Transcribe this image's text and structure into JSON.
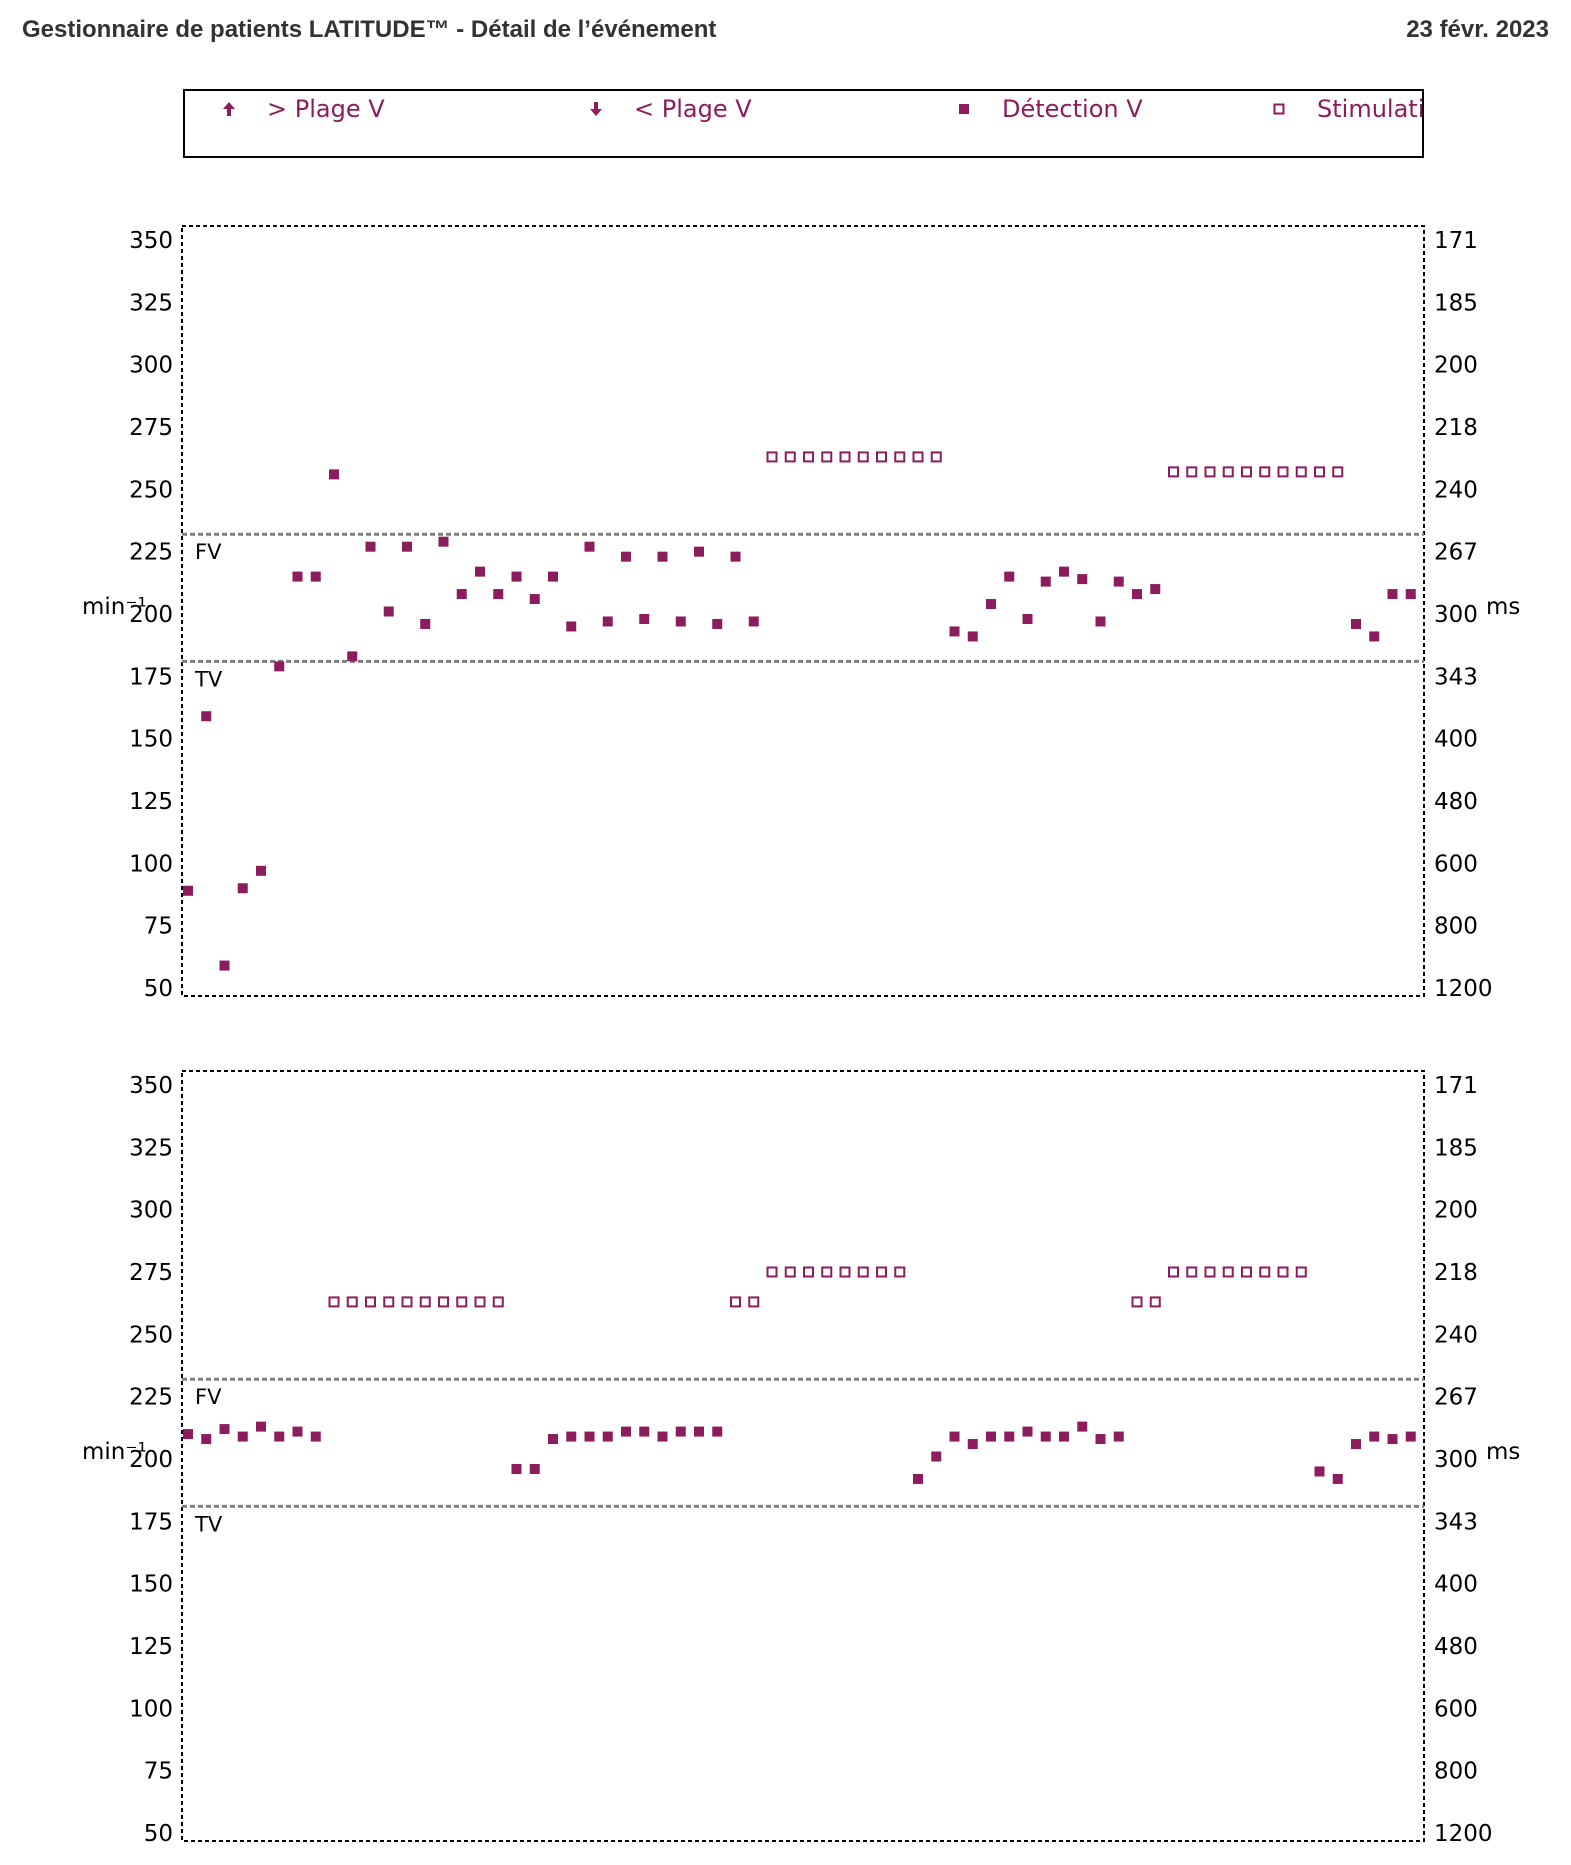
{
  "header": {
    "title": "Gestionnaire de patients LATITUDE™ - Détail de l’événement",
    "date": "23 févr. 2023"
  },
  "colors": {
    "marker": "#8B1D5E",
    "zone_line": "#808080",
    "frame": "#000000"
  },
  "legend": {
    "items": [
      {
        "label": "> Plage V",
        "icon": "arrow-up-icon"
      },
      {
        "label": "< Plage V",
        "icon": "arrow-down-icon"
      },
      {
        "label": "Détection V",
        "icon": "filled-square-icon"
      },
      {
        "label": "Stimulation V",
        "icon": "open-square-icon"
      }
    ]
  },
  "chart_data": [
    {
      "type": "scatter",
      "ylabel": "min⁻¹",
      "ylabel_right": "ms",
      "yticks": [
        350,
        325,
        300,
        275,
        250,
        225,
        200,
        175,
        150,
        125,
        100,
        75,
        50
      ],
      "yticks_right": [
        "171",
        "185",
        "200",
        "218",
        "240",
        "267",
        "300",
        "343",
        "400",
        "480",
        "600",
        "800",
        "1200"
      ],
      "ylim": [
        50,
        350
      ],
      "grid": false,
      "zones": [
        {
          "label": "FV",
          "value": 232
        },
        {
          "label": "TV",
          "value": 181
        }
      ],
      "series": [
        {
          "name": "Détection V",
          "marker": "filled-square",
          "points": [
            [
              0,
              89
            ],
            [
              1,
              159
            ],
            [
              2,
              59
            ],
            [
              3,
              90
            ],
            [
              4,
              97
            ],
            [
              5,
              179
            ],
            [
              6,
              215
            ],
            [
              7,
              215
            ],
            [
              8,
              256
            ],
            [
              9,
              183
            ],
            [
              10,
              227
            ],
            [
              11,
              201
            ],
            [
              12,
              227
            ],
            [
              13,
              196
            ],
            [
              14,
              229
            ],
            [
              15,
              208
            ],
            [
              16,
              217
            ],
            [
              17,
              208
            ],
            [
              18,
              215
            ],
            [
              19,
              206
            ],
            [
              20,
              215
            ],
            [
              21,
              195
            ],
            [
              22,
              227
            ],
            [
              23,
              197
            ],
            [
              24,
              223
            ],
            [
              25,
              198
            ],
            [
              26,
              223
            ],
            [
              27,
              197
            ],
            [
              28,
              225
            ],
            [
              29,
              196
            ],
            [
              30,
              223
            ],
            [
              31,
              197
            ],
            [
              42,
              193
            ],
            [
              43,
              191
            ],
            [
              44,
              204
            ],
            [
              45,
              215
            ],
            [
              46,
              198
            ],
            [
              47,
              213
            ],
            [
              48,
              217
            ],
            [
              49,
              214
            ],
            [
              50,
              197
            ],
            [
              51,
              213
            ],
            [
              52,
              208
            ],
            [
              53,
              210
            ],
            [
              64,
              196
            ],
            [
              65,
              191
            ],
            [
              66,
              208
            ],
            [
              67,
              208
            ]
          ]
        },
        {
          "name": "Stimulation V",
          "marker": "open-square",
          "points": [
            [
              32,
              263
            ],
            [
              33,
              263
            ],
            [
              34,
              263
            ],
            [
              35,
              263
            ],
            [
              36,
              263
            ],
            [
              37,
              263
            ],
            [
              38,
              263
            ],
            [
              39,
              263
            ],
            [
              40,
              263
            ],
            [
              41,
              263
            ],
            [
              54,
              257
            ],
            [
              55,
              257
            ],
            [
              56,
              257
            ],
            [
              57,
              257
            ],
            [
              58,
              257
            ],
            [
              59,
              257
            ],
            [
              60,
              257
            ],
            [
              61,
              257
            ],
            [
              62,
              257
            ],
            [
              63,
              257
            ]
          ]
        }
      ]
    },
    {
      "type": "scatter",
      "ylabel": "min⁻¹",
      "ylabel_right": "ms",
      "yticks": [
        350,
        325,
        300,
        275,
        250,
        225,
        200,
        175,
        150,
        125,
        100,
        75,
        50
      ],
      "yticks_right": [
        "171",
        "185",
        "200",
        "218",
        "240",
        "267",
        "300",
        "343",
        "400",
        "480",
        "600",
        "800",
        "1200"
      ],
      "ylim": [
        50,
        350
      ],
      "grid": false,
      "zones": [
        {
          "label": "FV",
          "value": 232
        },
        {
          "label": "TV",
          "value": 181
        }
      ],
      "series": [
        {
          "name": "Détection V",
          "marker": "filled-square",
          "points": [
            [
              0,
              210
            ],
            [
              1,
              208
            ],
            [
              2,
              212
            ],
            [
              3,
              209
            ],
            [
              4,
              213
            ],
            [
              5,
              209
            ],
            [
              6,
              211
            ],
            [
              7,
              209
            ],
            [
              18,
              196
            ],
            [
              19,
              196
            ],
            [
              20,
              208
            ],
            [
              21,
              209
            ],
            [
              22,
              209
            ],
            [
              23,
              209
            ],
            [
              24,
              211
            ],
            [
              25,
              211
            ],
            [
              26,
              209
            ],
            [
              27,
              211
            ],
            [
              28,
              211
            ],
            [
              29,
              211
            ],
            [
              40,
              192
            ],
            [
              41,
              201
            ],
            [
              42,
              209
            ],
            [
              43,
              206
            ],
            [
              44,
              209
            ],
            [
              45,
              209
            ],
            [
              46,
              211
            ],
            [
              47,
              209
            ],
            [
              48,
              209
            ],
            [
              49,
              213
            ],
            [
              50,
              208
            ],
            [
              51,
              209
            ],
            [
              62,
              195
            ],
            [
              63,
              192
            ],
            [
              64,
              206
            ],
            [
              65,
              209
            ],
            [
              66,
              208
            ],
            [
              67,
              209
            ]
          ]
        },
        {
          "name": "Stimulation V",
          "marker": "open-square",
          "points": [
            [
              8,
              263
            ],
            [
              9,
              263
            ],
            [
              10,
              263
            ],
            [
              11,
              263
            ],
            [
              12,
              263
            ],
            [
              13,
              263
            ],
            [
              14,
              263
            ],
            [
              15,
              263
            ],
            [
              16,
              263
            ],
            [
              17,
              263
            ],
            [
              30,
              263
            ],
            [
              31,
              263
            ],
            [
              32,
              275
            ],
            [
              33,
              275
            ],
            [
              34,
              275
            ],
            [
              35,
              275
            ],
            [
              36,
              275
            ],
            [
              37,
              275
            ],
            [
              38,
              275
            ],
            [
              39,
              275
            ],
            [
              52,
              263
            ],
            [
              53,
              263
            ],
            [
              54,
              275
            ],
            [
              55,
              275
            ],
            [
              56,
              275
            ],
            [
              57,
              275
            ],
            [
              58,
              275
            ],
            [
              59,
              275
            ],
            [
              60,
              275
            ],
            [
              61,
              275
            ]
          ]
        }
      ]
    }
  ]
}
